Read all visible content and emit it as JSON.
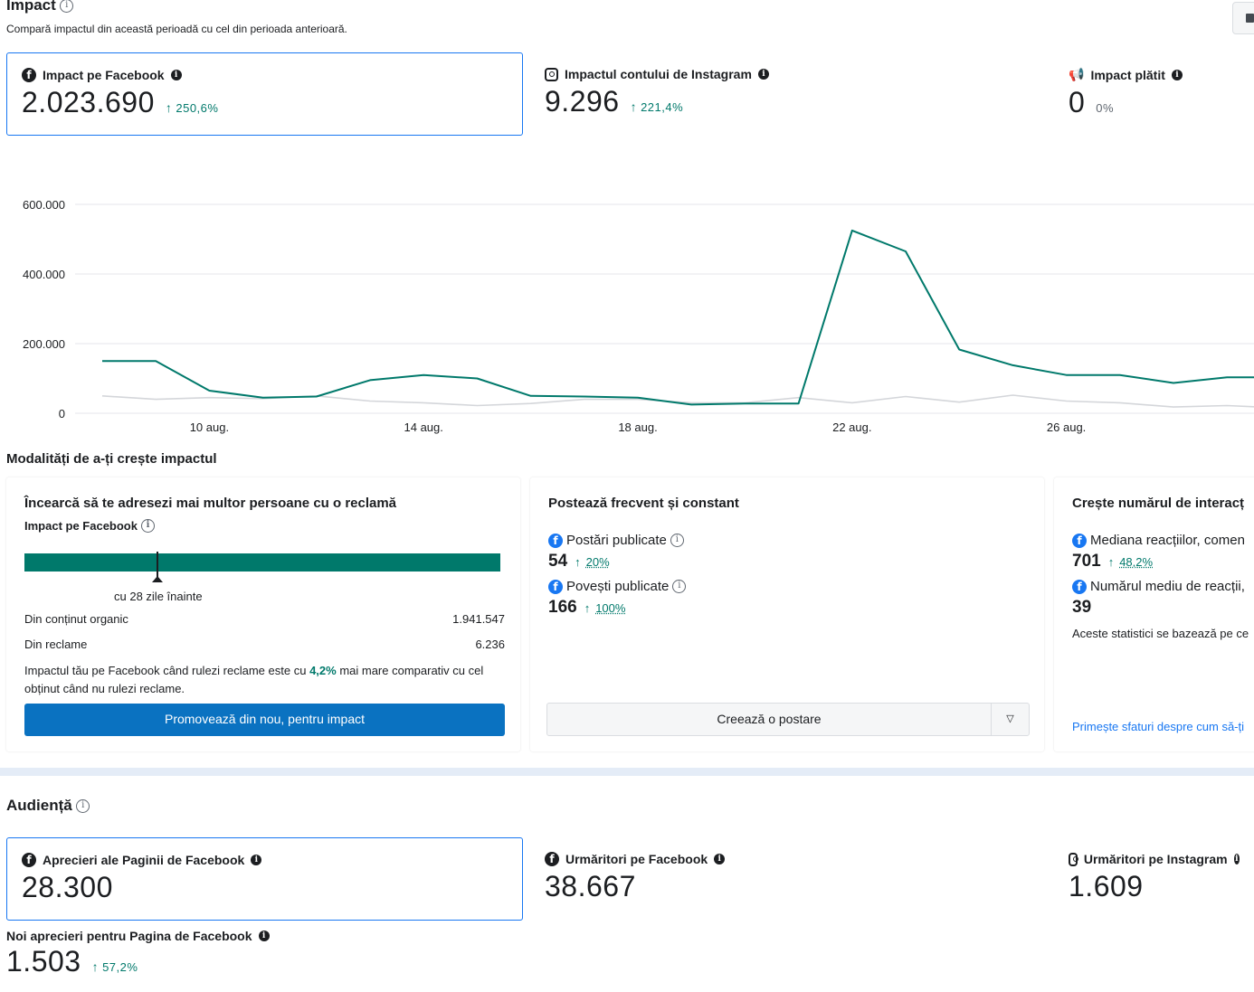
{
  "impact": {
    "title": "Impact",
    "subtitle": "Compară impactul din această perioadă cu cel din perioada anterioară.",
    "metrics": [
      {
        "label": "Impact pe Facebook",
        "value": "2.023.690",
        "change": "250,6%",
        "direction": "up",
        "icon": "facebook-icon"
      },
      {
        "label": "Impactul contului de Instagram",
        "value": "9.296",
        "change": "221,4%",
        "direction": "up",
        "icon": "instagram-icon"
      },
      {
        "label": "Impact plătit",
        "value": "0",
        "change": "0%",
        "direction": "none",
        "icon": "megaphone-icon"
      }
    ]
  },
  "chart_data": {
    "type": "line",
    "x": [
      "8 aug.",
      "9 aug.",
      "10 aug.",
      "11 aug.",
      "12 aug.",
      "13 aug.",
      "14 aug.",
      "15 aug.",
      "16 aug.",
      "17 aug.",
      "18 aug.",
      "19 aug.",
      "20 aug.",
      "21 aug.",
      "22 aug.",
      "23 aug.",
      "24 aug.",
      "25 aug.",
      "26 aug.",
      "27 aug.",
      "28 aug.",
      "29 aug.",
      "30 aug."
    ],
    "tick_labels": [
      "10 aug.",
      "14 aug.",
      "18 aug.",
      "22 aug.",
      "26 aug."
    ],
    "y_ticks": [
      "600.000",
      "400.000",
      "200.000",
      "0"
    ],
    "ylim": [
      0,
      600000
    ],
    "series": [
      {
        "values": [
          150000,
          150000,
          65000,
          45000,
          48000,
          95000,
          110000,
          100000,
          50000,
          48000,
          45000,
          25000,
          28000,
          28000,
          525000,
          465000,
          183000,
          138000,
          110000,
          110000,
          87000,
          103000,
          103000
        ],
        "color": "#00796b"
      },
      {
        "values": [
          50000,
          40000,
          45000,
          42000,
          50000,
          35000,
          30000,
          22000,
          28000,
          40000,
          40000,
          30000,
          30000,
          45000,
          30000,
          48000,
          32000,
          52000,
          35000,
          30000,
          18000,
          22000,
          15000
        ],
        "color": "#d4d6da"
      }
    ],
    "grid": true
  },
  "ways": {
    "title": "Modalități de a-ți crește impactul",
    "ad_panel": {
      "title": "Încearcă să te adresezi mai multor persoane cu o reclamă",
      "metric_label": "Impact pe Facebook",
      "bar_color": "#00796b",
      "marker_fraction": 0.28,
      "marker_label": "cu 28 zile înainte",
      "rows": [
        {
          "label": "Din conținut organic",
          "value": "1.941.547"
        },
        {
          "label": "Din reclame",
          "value": "6.236"
        }
      ],
      "note_before": "Impactul tău pe Facebook când rulezi reclame este cu ",
      "note_highlight": "4,2%",
      "note_after": " mai mare comparativ cu cel obținut când nu rulezi reclame.",
      "button": "Promovează din nou, pentru impact"
    },
    "post_panel": {
      "title": "Postează frecvent și constant",
      "stats": [
        {
          "label": "Postări publicate",
          "value": "54",
          "change": "20%"
        },
        {
          "label": "Povești publicate",
          "value": "166",
          "change": "100%"
        }
      ],
      "button": "Creează o postare"
    },
    "interact_panel": {
      "title": "Crește numărul de interacț",
      "stats": [
        {
          "label": "Mediana reacțiilor, comen",
          "value": "701",
          "change": "48,2%"
        },
        {
          "label": "Numărul mediu de reacții,",
          "value": "39",
          "change": ""
        }
      ],
      "note": "Aceste statistici se bazează pe ce",
      "link": "Primește sfaturi despre cum să-ți"
    }
  },
  "audience": {
    "title": "Audiență",
    "metrics": [
      {
        "label": "Aprecieri ale Paginii de Facebook",
        "value": "28.300",
        "icon": "facebook-icon"
      },
      {
        "label": "Urmăritori pe Facebook",
        "value": "38.667",
        "icon": "facebook-icon"
      },
      {
        "label": "Urmăritori pe Instagram",
        "value": "1.609",
        "icon": "instagram-icon"
      }
    ],
    "new_likes": {
      "label": "Noi aprecieri pentru Pagina de Facebook",
      "value": "1.503",
      "change": "57,2%"
    }
  }
}
